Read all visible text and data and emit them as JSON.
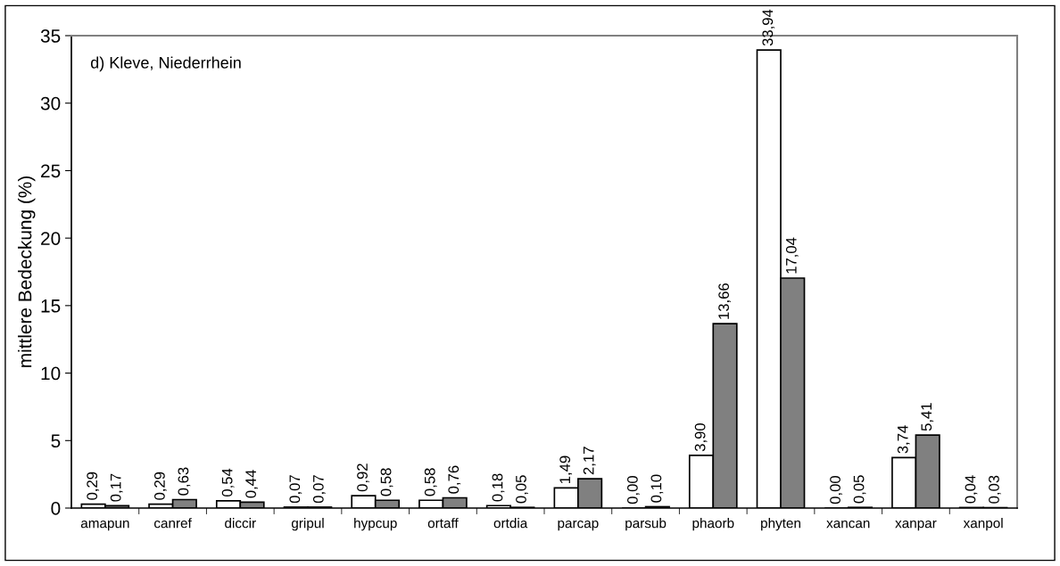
{
  "chart_data": {
    "type": "bar",
    "ylabel": "mittlere Bedeckung (%)",
    "annotations": [
      "d) Kleve, Niederrhein"
    ],
    "categories": [
      "amapun",
      "canref",
      "diccir",
      "gripul",
      "hypcup",
      "ortaff",
      "ortdia",
      "parcap",
      "parsub",
      "phaorb",
      "phyten",
      "xancan",
      "xanpar",
      "xanpol"
    ],
    "series": [
      {
        "color": "#ffffff",
        "values": [
          0.29,
          0.29,
          0.54,
          0.07,
          0.92,
          0.58,
          0.18,
          1.49,
          0.0,
          3.9,
          33.94,
          0.0,
          3.74,
          0.04
        ],
        "value_labels": [
          "0,29",
          "0,29",
          "0,54",
          "0,07",
          "0,92",
          "0,58",
          "0,18",
          "1,49",
          "0,00",
          "3,90",
          "33,94",
          "0,00",
          "3,74",
          "0,04"
        ]
      },
      {
        "color": "#808080",
        "values": [
          0.17,
          0.63,
          0.44,
          0.07,
          0.58,
          0.76,
          0.05,
          2.17,
          0.1,
          13.66,
          17.04,
          0.05,
          5.41,
          0.03
        ],
        "value_labels": [
          "0,17",
          "0,63",
          "0,44",
          "0,07",
          "0,58",
          "0,76",
          "0,05",
          "2,17",
          "0,10",
          "13,66",
          "17,04",
          "0,05",
          "5,41",
          "0,03"
        ]
      }
    ],
    "ylim": [
      0,
      35
    ],
    "yticks": [
      0,
      5,
      10,
      15,
      20,
      25,
      30,
      35
    ],
    "grid": false,
    "legend": false
  }
}
